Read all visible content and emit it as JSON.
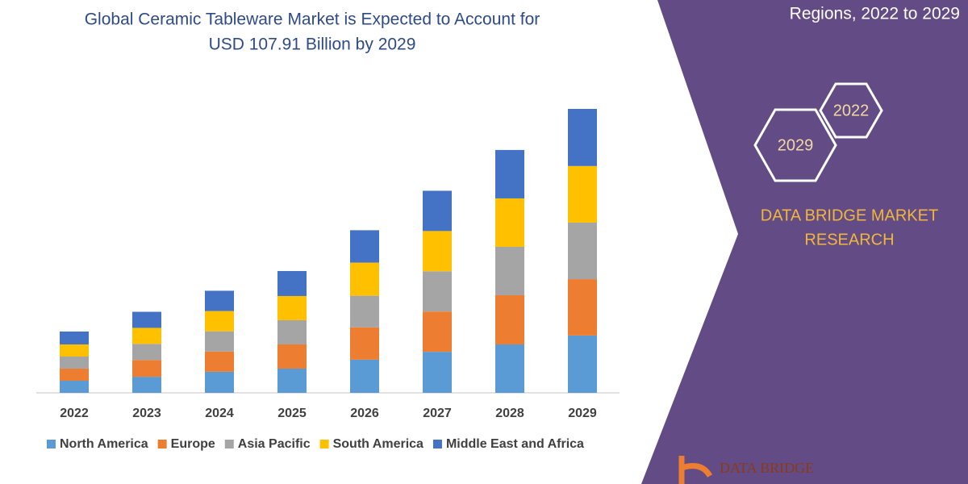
{
  "chart_data": {
    "type": "bar",
    "stacked": true,
    "title": [
      "Global Ceramic Tableware Market is Expected to Account for",
      "USD 107.91 Billion by 2029"
    ],
    "categories": [
      "2022",
      "2023",
      "2024",
      "2025",
      "2026",
      "2027",
      "2028",
      "2029"
    ],
    "series": [
      {
        "name": "North America",
        "color": "#5b9bd5",
        "values": [
          4.6,
          6.1,
          8.0,
          9.2,
          12.6,
          15.6,
          18.4,
          21.8
        ]
      },
      {
        "name": "Europe",
        "color": "#ed7d31",
        "values": [
          4.6,
          6.4,
          7.7,
          9.2,
          12.3,
          15.3,
          18.7,
          21.4
        ]
      },
      {
        "name": "Asia Pacific",
        "color": "#a5a5a5",
        "values": [
          4.6,
          6.1,
          7.7,
          9.2,
          12.0,
          15.3,
          18.4,
          21.5
        ]
      },
      {
        "name": "South America",
        "color": "#ffc000",
        "values": [
          4.6,
          6.1,
          7.7,
          9.2,
          12.6,
          15.3,
          18.4,
          21.5
        ]
      },
      {
        "name": "Middle East and Africa",
        "color": "#4472c4",
        "values": [
          4.9,
          6.1,
          7.7,
          9.5,
          12.3,
          15.3,
          18.4,
          21.71
        ]
      }
    ]
  },
  "panel": {
    "heading_fragment": "Regions, 2022 to 2029",
    "hexagons": [
      "2022",
      "2029"
    ],
    "brand": [
      "DATA BRIDGE MARKET",
      "RESEARCH"
    ],
    "logo_text": "DATA BRIDGE"
  }
}
